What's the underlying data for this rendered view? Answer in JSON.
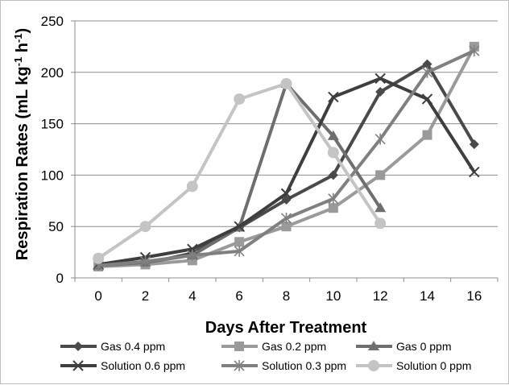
{
  "chart_data": {
    "type": "line",
    "xlabel": "Days After Treatment",
    "ylabel_main": "Respiration Rates (mL kg",
    "ylabel_sup1": "-1",
    "ylabel_mid": " h",
    "ylabel_sup2": "-1",
    "ylabel_end": ")",
    "x": [
      0,
      2,
      4,
      6,
      8,
      10,
      12,
      14,
      16
    ],
    "x_tick_labels": [
      "0",
      "2",
      "4",
      "6",
      "8",
      "10",
      "12",
      "14",
      "16"
    ],
    "ylim": [
      0,
      250
    ],
    "y_tick_labels": [
      "0",
      "50",
      "100",
      "150",
      "200",
      "250"
    ],
    "y_ticks": [
      0,
      50,
      100,
      150,
      200,
      250
    ],
    "grid": "horizontal",
    "legend_position": "bottom",
    "series": [
      {
        "name": "Gas 0.4 ppm",
        "color": "#4a4a4a",
        "marker": "diamond",
        "values": [
          12,
          14,
          24,
          49,
          76,
          100,
          181,
          208,
          130
        ]
      },
      {
        "name": "Gas 0.2 ppm",
        "color": "#9a9a9a",
        "marker": "square",
        "values": [
          11,
          13,
          17,
          35,
          50,
          68,
          100,
          139,
          225
        ]
      },
      {
        "name": "Gas 0 ppm",
        "color": "#6e6e6e",
        "marker": "triangle",
        "values": [
          12,
          15,
          22,
          49,
          189,
          138,
          68,
          null,
          null
        ]
      },
      {
        "name": "Solution 0.6 ppm",
        "color": "#3e3e3e",
        "marker": "x",
        "values": [
          13,
          20,
          28,
          50,
          82,
          176,
          194,
          174,
          103
        ]
      },
      {
        "name": "Solution 0.3 ppm",
        "color": "#808080",
        "marker": "star",
        "values": [
          12,
          16,
          22,
          26,
          58,
          77,
          135,
          200,
          221
        ]
      },
      {
        "name": "Solution 0 ppm",
        "color": "#c4c4c4",
        "marker": "circle",
        "values": [
          19,
          50,
          89,
          174,
          189,
          122,
          53,
          null,
          null
        ]
      }
    ]
  }
}
